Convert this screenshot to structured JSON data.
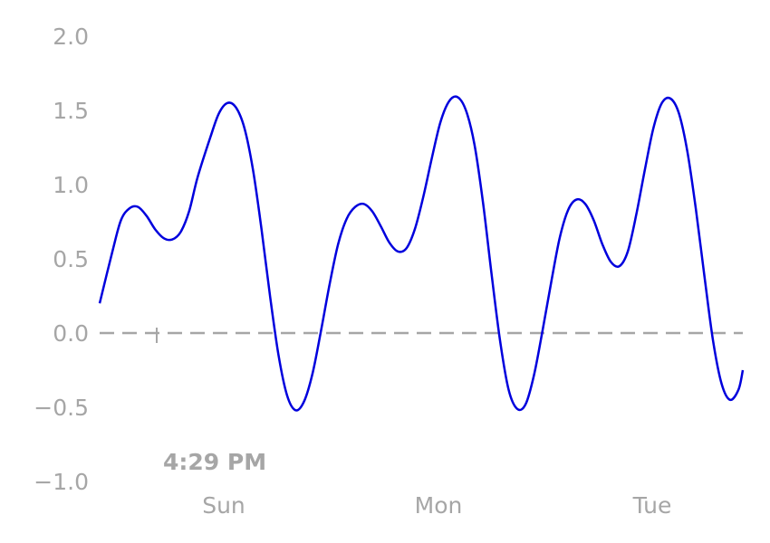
{
  "chart_data": {
    "type": "line",
    "title": "",
    "xlabel": "",
    "ylabel": "",
    "ylim": [
      -1.0,
      2.0
    ],
    "y_ticks": [
      {
        "value": -1.0,
        "label": "−1.0"
      },
      {
        "value": -0.5,
        "label": "−0.5"
      },
      {
        "value": 0.0,
        "label": "0.0"
      },
      {
        "value": 0.5,
        "label": "0.5"
      },
      {
        "value": 1.0,
        "label": "1.0"
      },
      {
        "value": 1.5,
        "label": "1.5"
      },
      {
        "value": 2.0,
        "label": "2.0"
      }
    ],
    "x_ticks": [
      "Sun",
      "Mon",
      "Tue"
    ],
    "grid": false,
    "legend": "none",
    "reference_line": {
      "y": 0.0,
      "style": "dashed",
      "color": "#a6a6a6"
    },
    "annotation": {
      "label": "4:29 PM"
    },
    "series": [
      {
        "color": "#0000dd",
        "points": [
          [
            0.0,
            0.2
          ],
          [
            0.03,
            0.55
          ],
          [
            0.05,
            0.76
          ],
          [
            0.07,
            0.84
          ],
          [
            0.09,
            0.85
          ],
          [
            0.11,
            0.79
          ],
          [
            0.13,
            0.7
          ],
          [
            0.15,
            0.64
          ],
          [
            0.17,
            0.63
          ],
          [
            0.19,
            0.68
          ],
          [
            0.21,
            0.82
          ],
          [
            0.23,
            1.05
          ],
          [
            0.26,
            1.32
          ],
          [
            0.28,
            1.48
          ],
          [
            0.3,
            1.55
          ],
          [
            0.32,
            1.52
          ],
          [
            0.34,
            1.38
          ],
          [
            0.36,
            1.1
          ],
          [
            0.38,
            0.7
          ],
          [
            0.4,
            0.25
          ],
          [
            0.42,
            -0.15
          ],
          [
            0.44,
            -0.42
          ],
          [
            0.46,
            -0.52
          ],
          [
            0.48,
            -0.46
          ],
          [
            0.5,
            -0.27
          ],
          [
            0.52,
            0.02
          ],
          [
            0.54,
            0.33
          ],
          [
            0.56,
            0.6
          ],
          [
            0.58,
            0.77
          ],
          [
            0.6,
            0.85
          ],
          [
            0.62,
            0.87
          ],
          [
            0.64,
            0.82
          ],
          [
            0.66,
            0.72
          ],
          [
            0.68,
            0.61
          ],
          [
            0.7,
            0.55
          ],
          [
            0.72,
            0.57
          ],
          [
            0.74,
            0.7
          ],
          [
            0.76,
            0.92
          ],
          [
            0.78,
            1.18
          ],
          [
            0.8,
            1.42
          ],
          [
            0.82,
            1.56
          ],
          [
            0.84,
            1.59
          ],
          [
            0.86,
            1.5
          ],
          [
            0.88,
            1.27
          ],
          [
            0.9,
            0.88
          ],
          [
            0.92,
            0.4
          ],
          [
            0.94,
            -0.05
          ],
          [
            0.96,
            -0.38
          ],
          [
            0.98,
            -0.51
          ],
          [
            1.0,
            -0.48
          ],
          [
            1.02,
            -0.28
          ],
          [
            1.04,
            0.02
          ],
          [
            1.06,
            0.34
          ],
          [
            1.08,
            0.64
          ],
          [
            1.1,
            0.83
          ],
          [
            1.12,
            0.9
          ],
          [
            1.14,
            0.87
          ],
          [
            1.16,
            0.76
          ],
          [
            1.18,
            0.6
          ],
          [
            1.2,
            0.48
          ],
          [
            1.22,
            0.45
          ],
          [
            1.24,
            0.55
          ],
          [
            1.26,
            0.8
          ],
          [
            1.28,
            1.1
          ],
          [
            1.3,
            1.38
          ],
          [
            1.32,
            1.55
          ],
          [
            1.34,
            1.58
          ],
          [
            1.36,
            1.48
          ],
          [
            1.38,
            1.22
          ],
          [
            1.4,
            0.83
          ],
          [
            1.42,
            0.38
          ],
          [
            1.44,
            -0.05
          ],
          [
            1.46,
            -0.34
          ],
          [
            1.48,
            -0.45
          ],
          [
            1.5,
            -0.38
          ],
          [
            1.51,
            -0.25
          ]
        ]
      }
    ]
  }
}
